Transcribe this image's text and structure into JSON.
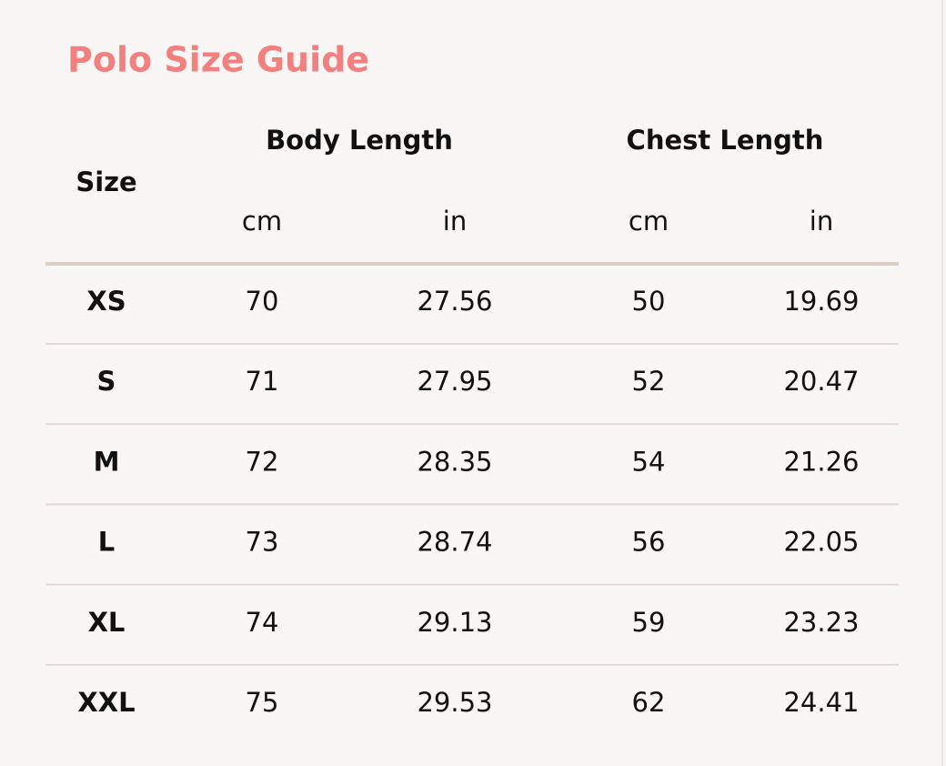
{
  "title": "Polo Size Guide",
  "table": {
    "header": {
      "size": "Size",
      "groups": [
        {
          "label": "Body Length",
          "units": [
            "cm",
            "in"
          ]
        },
        {
          "label": "Chest Length",
          "units": [
            "cm",
            "in"
          ]
        }
      ]
    },
    "rows": [
      [
        "XS",
        70,
        27.56,
        50,
        19.69
      ],
      [
        "S",
        71,
        27.95,
        52,
        20.47
      ],
      [
        "M",
        72,
        28.35,
        54,
        21.26
      ],
      [
        "L",
        73,
        28.74,
        56,
        22.05
      ],
      [
        "XL",
        74,
        29.13,
        59,
        23.23
      ],
      [
        "XXL",
        75,
        29.53,
        62,
        24.41
      ]
    ]
  }
}
